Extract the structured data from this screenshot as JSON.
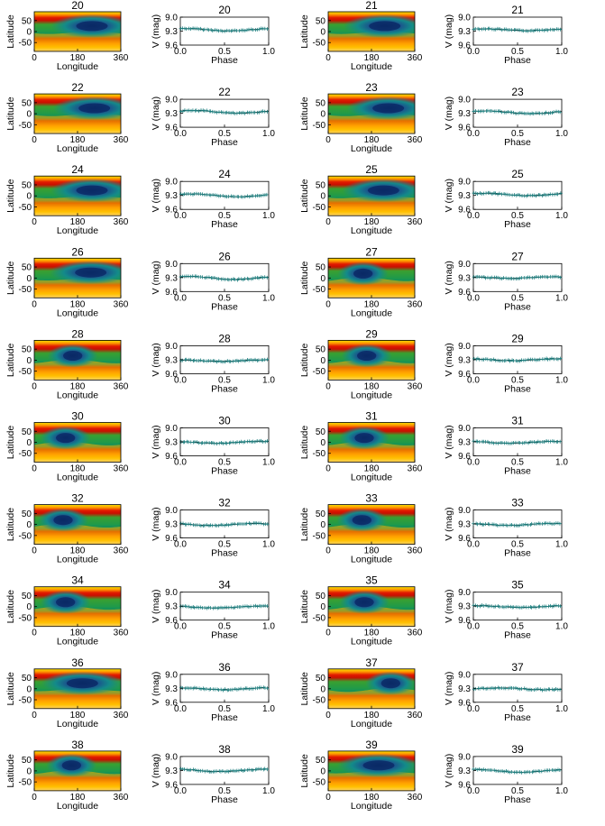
{
  "figure": {
    "map_xlabel": "Longitude",
    "map_ylabel": "Latitude",
    "map_xticks": [
      "0",
      "180",
      "360"
    ],
    "map_yticks": [
      "50",
      "0",
      "-50"
    ],
    "lc_xlabel": "Phase",
    "lc_ylabel": "V (mag)",
    "lc_xticks": [
      "0.0",
      "0.5",
      "1.0"
    ],
    "lc_yticks": [
      "9.0",
      "9.3",
      "9.6"
    ]
  },
  "chart_data": [
    {
      "type": "heatmap",
      "title": "20",
      "xlabel": "Longitude",
      "ylabel": "Latitude",
      "xlim": [
        0,
        360
      ],
      "ylim": [
        -90,
        90
      ],
      "spot_longitude": 240,
      "spot_latitude": 25,
      "cool_region": "extended"
    },
    {
      "type": "scatter",
      "title": "20",
      "xlabel": "Phase",
      "ylabel": "V (mag)",
      "xlim": [
        0,
        1
      ],
      "ylim": [
        9.6,
        9.0
      ],
      "mean_mag": 9.27,
      "amplitude": 0.05,
      "min_phase": 0.55
    },
    {
      "type": "heatmap",
      "title": "21",
      "xlabel": "Longitude",
      "ylabel": "Latitude",
      "xlim": [
        0,
        360
      ],
      "ylim": [
        -90,
        90
      ],
      "spot_longitude": 235,
      "spot_latitude": 25,
      "cool_region": "extended"
    },
    {
      "type": "scatter",
      "title": "21",
      "xlabel": "Phase",
      "ylabel": "V (mag)",
      "xlim": [
        0,
        1
      ],
      "ylim": [
        9.6,
        9.0
      ],
      "mean_mag": 9.27,
      "amplitude": 0.04,
      "min_phase": 0.6
    },
    {
      "type": "heatmap",
      "title": "22",
      "xlabel": "Longitude",
      "ylabel": "Latitude",
      "xlim": [
        0,
        360
      ],
      "ylim": [
        -90,
        90
      ],
      "spot_longitude": 250,
      "spot_latitude": 25,
      "cool_region": "extended"
    },
    {
      "type": "scatter",
      "title": "22",
      "xlabel": "Phase",
      "ylabel": "V (mag)",
      "xlim": [
        0,
        1
      ],
      "ylim": [
        9.6,
        9.0
      ],
      "mean_mag": 9.27,
      "amplitude": 0.06,
      "min_phase": 0.65
    },
    {
      "type": "heatmap",
      "title": "23",
      "xlabel": "Longitude",
      "ylabel": "Latitude",
      "xlim": [
        0,
        360
      ],
      "ylim": [
        -90,
        90
      ],
      "spot_longitude": 250,
      "spot_latitude": 25,
      "cool_region": "extended"
    },
    {
      "type": "scatter",
      "title": "23",
      "xlabel": "Phase",
      "ylabel": "V (mag)",
      "xlim": [
        0,
        1
      ],
      "ylim": [
        9.6,
        9.0
      ],
      "mean_mag": 9.28,
      "amplitude": 0.06,
      "min_phase": 0.65
    },
    {
      "type": "heatmap",
      "title": "24",
      "xlabel": "Longitude",
      "ylabel": "Latitude",
      "xlim": [
        0,
        360
      ],
      "ylim": [
        -90,
        90
      ],
      "spot_longitude": 240,
      "spot_latitude": 25,
      "cool_region": "extended"
    },
    {
      "type": "scatter",
      "title": "24",
      "xlabel": "Phase",
      "ylabel": "V (mag)",
      "xlim": [
        0,
        1
      ],
      "ylim": [
        9.6,
        9.0
      ],
      "mean_mag": 9.3,
      "amplitude": 0.06,
      "min_phase": 0.65
    },
    {
      "type": "heatmap",
      "title": "25",
      "xlabel": "Longitude",
      "ylabel": "Latitude",
      "xlim": [
        0,
        360
      ],
      "ylim": [
        -90,
        90
      ],
      "spot_longitude": 230,
      "spot_latitude": 25,
      "cool_region": "extended"
    },
    {
      "type": "scatter",
      "title": "25",
      "xlabel": "Phase",
      "ylabel": "V (mag)",
      "xlim": [
        0,
        1
      ],
      "ylim": [
        9.6,
        9.0
      ],
      "mean_mag": 9.28,
      "amplitude": 0.05,
      "min_phase": 0.62
    },
    {
      "type": "heatmap",
      "title": "26",
      "xlabel": "Longitude",
      "ylabel": "Latitude",
      "xlim": [
        0,
        360
      ],
      "ylim": [
        -90,
        90
      ],
      "spot_longitude": 235,
      "spot_latitude": 25,
      "cool_region": "extended"
    },
    {
      "type": "scatter",
      "title": "26",
      "xlabel": "Phase",
      "ylabel": "V (mag)",
      "xlim": [
        0,
        1
      ],
      "ylim": [
        9.6,
        9.0
      ],
      "mean_mag": 9.31,
      "amplitude": 0.06,
      "min_phase": 0.62
    },
    {
      "type": "heatmap",
      "title": "27",
      "xlabel": "Longitude",
      "ylabel": "Latitude",
      "xlim": [
        0,
        360
      ],
      "ylim": [
        -90,
        90
      ],
      "spot_longitude": 145,
      "spot_latitude": 20,
      "cool_region": "band"
    },
    {
      "type": "scatter",
      "title": "27",
      "xlabel": "Phase",
      "ylabel": "V (mag)",
      "xlim": [
        0,
        1
      ],
      "ylim": [
        9.6,
        9.0
      ],
      "mean_mag": 9.3,
      "amplitude": 0.03,
      "min_phase": 0.4
    },
    {
      "type": "heatmap",
      "title": "28",
      "xlabel": "Longitude",
      "ylabel": "Latitude",
      "xlim": [
        0,
        360
      ],
      "ylim": [
        -90,
        90
      ],
      "spot_longitude": 160,
      "spot_latitude": 20,
      "cool_region": "band"
    },
    {
      "type": "scatter",
      "title": "28",
      "xlabel": "Phase",
      "ylabel": "V (mag)",
      "xlim": [
        0,
        1
      ],
      "ylim": [
        9.6,
        9.0
      ],
      "mean_mag": 9.32,
      "amplitude": 0.03,
      "min_phase": 0.45
    },
    {
      "type": "heatmap",
      "title": "29",
      "xlabel": "Longitude",
      "ylabel": "Latitude",
      "xlim": [
        0,
        360
      ],
      "ylim": [
        -90,
        90
      ],
      "spot_longitude": 160,
      "spot_latitude": 20,
      "cool_region": "band"
    },
    {
      "type": "scatter",
      "title": "29",
      "xlabel": "Phase",
      "ylabel": "V (mag)",
      "xlim": [
        0,
        1
      ],
      "ylim": [
        9.6,
        9.0
      ],
      "mean_mag": 9.3,
      "amplitude": 0.04,
      "min_phase": 0.45
    },
    {
      "type": "heatmap",
      "title": "30",
      "xlabel": "Longitude",
      "ylabel": "Latitude",
      "xlim": [
        0,
        360
      ],
      "ylim": [
        -90,
        90
      ],
      "spot_longitude": 130,
      "spot_latitude": 20,
      "cool_region": "band"
    },
    {
      "type": "scatter",
      "title": "30",
      "xlabel": "Phase",
      "ylabel": "V (mag)",
      "xlim": [
        0,
        1
      ],
      "ylim": [
        9.6,
        9.0
      ],
      "mean_mag": 9.31,
      "amplitude": 0.04,
      "min_phase": 0.4
    },
    {
      "type": "heatmap",
      "title": "31",
      "xlabel": "Longitude",
      "ylabel": "Latitude",
      "xlim": [
        0,
        360
      ],
      "ylim": [
        -90,
        90
      ],
      "spot_longitude": 150,
      "spot_latitude": 20,
      "cool_region": "band"
    },
    {
      "type": "scatter",
      "title": "31",
      "xlabel": "Phase",
      "ylabel": "V (mag)",
      "xlim": [
        0,
        1
      ],
      "ylim": [
        9.6,
        9.0
      ],
      "mean_mag": 9.31,
      "amplitude": 0.04,
      "min_phase": 0.42
    },
    {
      "type": "heatmap",
      "title": "32",
      "xlabel": "Longitude",
      "ylabel": "Latitude",
      "xlim": [
        0,
        360
      ],
      "ylim": [
        -90,
        90
      ],
      "spot_longitude": 120,
      "spot_latitude": 20,
      "cool_region": "band"
    },
    {
      "type": "scatter",
      "title": "32",
      "xlabel": "Phase",
      "ylabel": "V (mag)",
      "xlim": [
        0,
        1
      ],
      "ylim": [
        9.6,
        9.0
      ],
      "mean_mag": 9.31,
      "amplitude": 0.04,
      "min_phase": 0.35
    },
    {
      "type": "heatmap",
      "title": "33",
      "xlabel": "Longitude",
      "ylabel": "Latitude",
      "xlim": [
        0,
        360
      ],
      "ylim": [
        -90,
        90
      ],
      "spot_longitude": 140,
      "spot_latitude": 20,
      "cool_region": "band"
    },
    {
      "type": "scatter",
      "title": "33",
      "xlabel": "Phase",
      "ylabel": "V (mag)",
      "xlim": [
        0,
        1
      ],
      "ylim": [
        9.6,
        9.0
      ],
      "mean_mag": 9.31,
      "amplitude": 0.04,
      "min_phase": 0.4
    },
    {
      "type": "heatmap",
      "title": "34",
      "xlabel": "Longitude",
      "ylabel": "Latitude",
      "xlim": [
        0,
        360
      ],
      "ylim": [
        -90,
        90
      ],
      "spot_longitude": 130,
      "spot_latitude": 20,
      "cool_region": "band"
    },
    {
      "type": "scatter",
      "title": "34",
      "xlabel": "Phase",
      "ylabel": "V (mag)",
      "xlim": [
        0,
        1
      ],
      "ylim": [
        9.6,
        9.0
      ],
      "mean_mag": 9.32,
      "amplitude": 0.04,
      "min_phase": 0.4
    },
    {
      "type": "heatmap",
      "title": "35",
      "xlabel": "Longitude",
      "ylabel": "Latitude",
      "xlim": [
        0,
        360
      ],
      "ylim": [
        -90,
        90
      ],
      "spot_longitude": 150,
      "spot_latitude": 20,
      "cool_region": "band"
    },
    {
      "type": "scatter",
      "title": "35",
      "xlabel": "Phase",
      "ylabel": "V (mag)",
      "xlim": [
        0,
        1
      ],
      "ylim": [
        9.6,
        9.0
      ],
      "mean_mag": 9.31,
      "amplitude": 0.04,
      "min_phase": 0.55
    },
    {
      "type": "heatmap",
      "title": "36",
      "xlabel": "Longitude",
      "ylabel": "Latitude",
      "xlim": [
        0,
        360
      ],
      "ylim": [
        -90,
        90
      ],
      "spot_longitude": 200,
      "spot_latitude": 25,
      "cool_region": "extended"
    },
    {
      "type": "scatter",
      "title": "36",
      "xlabel": "Phase",
      "ylabel": "V (mag)",
      "xlim": [
        0,
        1
      ],
      "ylim": [
        9.6,
        9.0
      ],
      "mean_mag": 9.31,
      "amplitude": 0.04,
      "min_phase": 0.5
    },
    {
      "type": "heatmap",
      "title": "37",
      "xlabel": "Longitude",
      "ylabel": "Latitude",
      "xlim": [
        0,
        360
      ],
      "ylim": [
        -90,
        90
      ],
      "spot_longitude": 260,
      "spot_latitude": 25,
      "cool_region": "band"
    },
    {
      "type": "scatter",
      "title": "37",
      "xlabel": "Phase",
      "ylabel": "V (mag)",
      "xlim": [
        0,
        1
      ],
      "ylim": [
        9.6,
        9.0
      ],
      "mean_mag": 9.31,
      "amplitude": 0.04,
      "min_phase": 0.8
    },
    {
      "type": "heatmap",
      "title": "38",
      "xlabel": "Longitude",
      "ylabel": "Latitude",
      "xlim": [
        0,
        360
      ],
      "ylim": [
        -90,
        90
      ],
      "spot_longitude": 155,
      "spot_latitude": 25,
      "cool_region": "band"
    },
    {
      "type": "scatter",
      "title": "38",
      "xlabel": "Phase",
      "ylabel": "V (mag)",
      "xlim": [
        0,
        1
      ],
      "ylim": [
        9.6,
        9.0
      ],
      "mean_mag": 9.3,
      "amplitude": 0.05,
      "min_phase": 0.45
    },
    {
      "type": "heatmap",
      "title": "39",
      "xlabel": "Longitude",
      "ylabel": "Latitude",
      "xlim": [
        0,
        360
      ],
      "ylim": [
        -90,
        90
      ],
      "spot_longitude": 210,
      "spot_latitude": 25,
      "cool_region": "extended"
    },
    {
      "type": "scatter",
      "title": "39",
      "xlabel": "Phase",
      "ylabel": "V (mag)",
      "xlim": [
        0,
        1
      ],
      "ylim": [
        9.6,
        9.0
      ],
      "mean_mag": 9.31,
      "amplitude": 0.06,
      "min_phase": 0.55
    }
  ]
}
